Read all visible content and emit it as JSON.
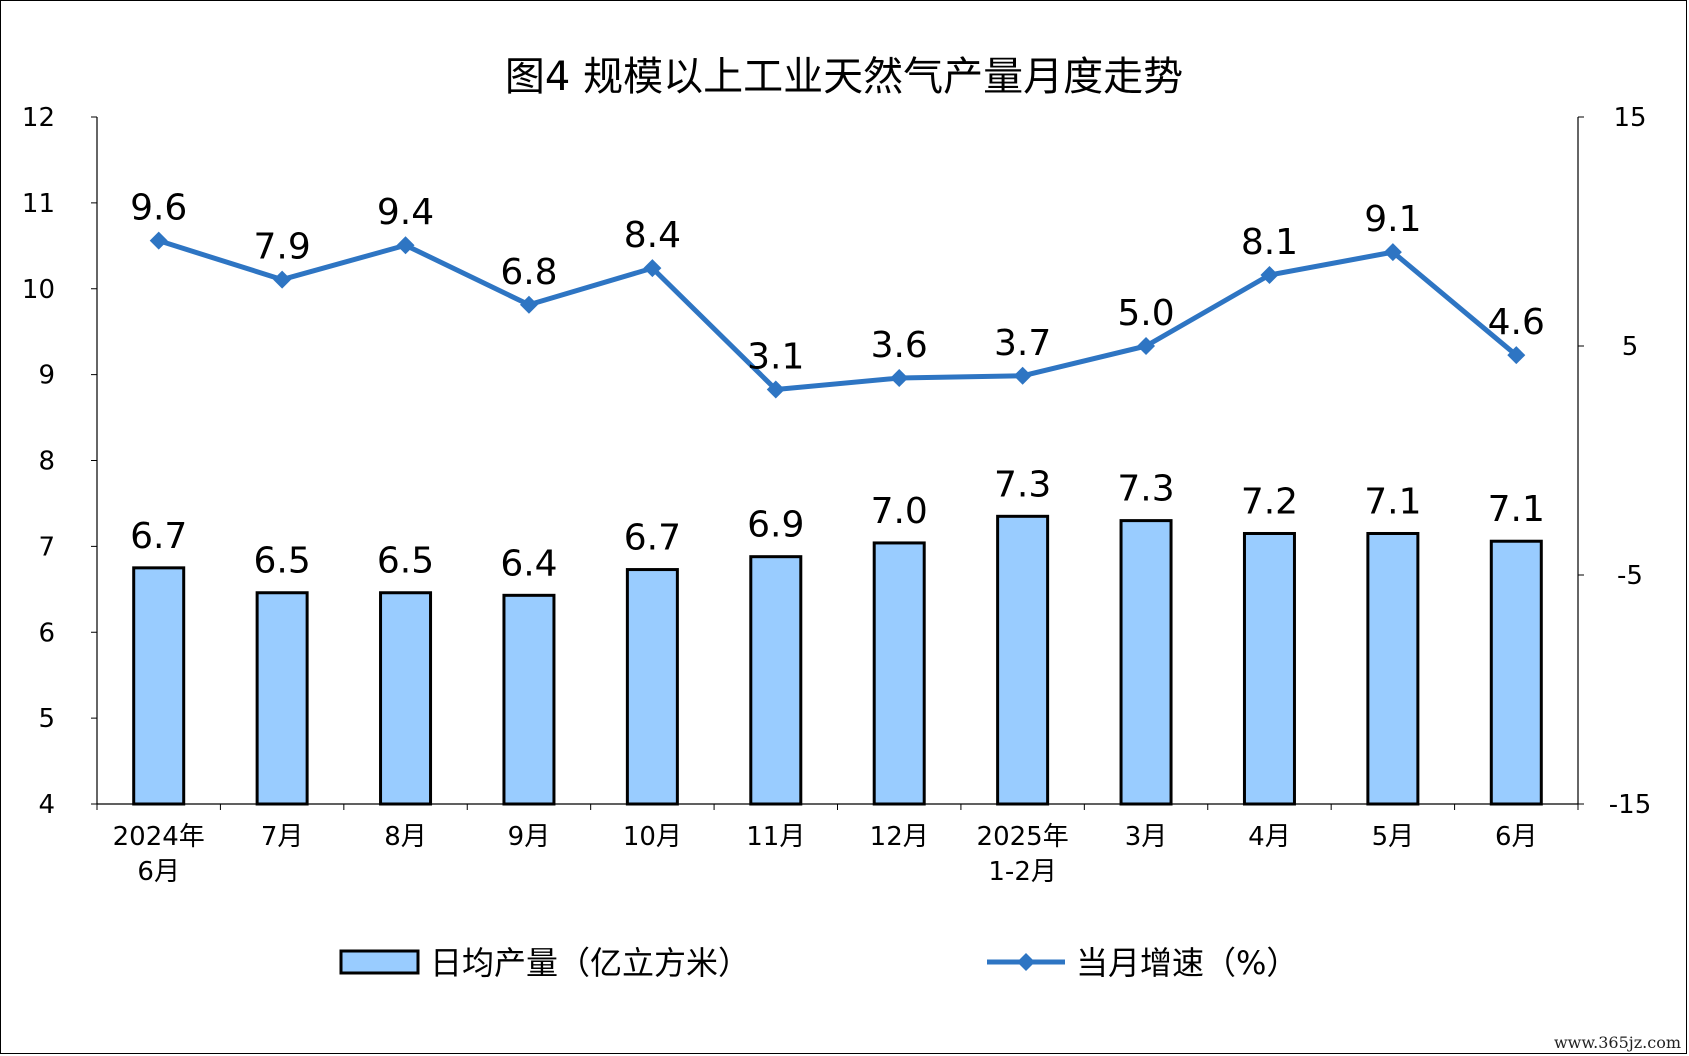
{
  "chart_data": {
    "type": "bar+line",
    "title": "图4  规模以上工业天然气产量月度走势",
    "categories": [
      [
        "2024年",
        "6月"
      ],
      [
        "7月"
      ],
      [
        "8月"
      ],
      [
        "9月"
      ],
      [
        "10月"
      ],
      [
        "11月"
      ],
      [
        "12月"
      ],
      [
        "2025年",
        "1-2月"
      ],
      [
        "3月"
      ],
      [
        "4月"
      ],
      [
        "5月"
      ],
      [
        "6月"
      ]
    ],
    "series": [
      {
        "name": "日均产量（亿立方米）",
        "type": "bar",
        "axis": "left",
        "color": "#99CCFF",
        "values": [
          6.7,
          6.5,
          6.5,
          6.4,
          6.7,
          6.9,
          7.0,
          7.3,
          7.3,
          7.2,
          7.1,
          7.1
        ],
        "bar_heights": [
          6.75,
          6.46,
          6.46,
          6.43,
          6.73,
          6.88,
          7.04,
          7.35,
          7.3,
          7.15,
          7.15,
          7.06
        ]
      },
      {
        "name": "当月增速（%）",
        "type": "line",
        "axis": "right",
        "color": "#2E75C3",
        "values": [
          9.6,
          7.9,
          9.4,
          6.8,
          8.4,
          3.1,
          3.6,
          3.7,
          5.0,
          8.1,
          9.1,
          4.6
        ],
        "labels": [
          "9.6",
          "7.9",
          "9.4",
          "6.8",
          "8.4",
          "3.1",
          "3.6",
          "3.7",
          "5.0",
          "8.1",
          "9.1",
          "4.6"
        ]
      }
    ],
    "y_left": {
      "min": 4,
      "max": 12,
      "ticks": [
        4,
        5,
        6,
        7,
        8,
        9,
        10,
        11,
        12
      ]
    },
    "y_right": {
      "min": -15,
      "max": 15,
      "ticks": [
        -15,
        -5,
        5,
        15
      ]
    },
    "legend": {
      "position": "bottom"
    },
    "grid": false
  },
  "watermark": "www.365jz.com"
}
